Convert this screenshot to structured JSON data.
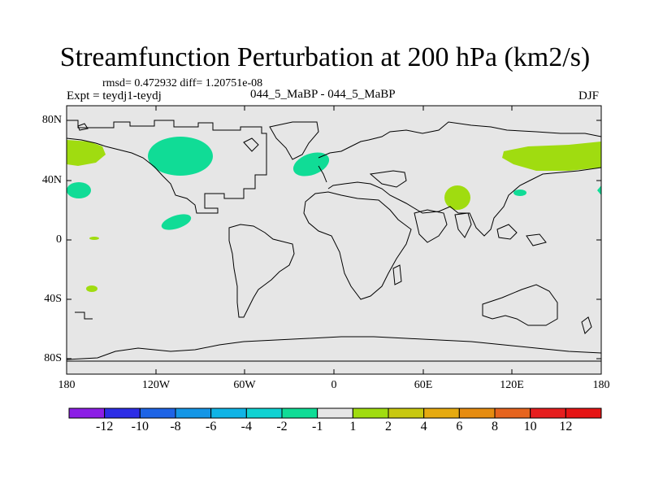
{
  "title": "Streamfunction Perturbation at 200 hPa (km2/s)",
  "stats": "rmsd= 0.472932 diff= 1.20751e-08",
  "expt": "Expt = teydj1-teydj",
  "case": "044_5_MaBP - 044_5_MaBP",
  "season": "DJF",
  "y_ticks": [
    "80N",
    "40N",
    "0",
    "40S",
    "80S"
  ],
  "x_ticks": [
    "180",
    "120W",
    "60W",
    "0",
    "60E",
    "120E",
    "180"
  ],
  "colorbar": {
    "labels": [
      "-12",
      "-10",
      "-8",
      "-6",
      "-4",
      "-2",
      "-1",
      "1",
      "2",
      "4",
      "6",
      "8",
      "10",
      "12"
    ],
    "colors": [
      "#8c1ee6",
      "#2d2de6",
      "#1e64e6",
      "#1496e6",
      "#10b4e6",
      "#10d2d2",
      "#10dc96",
      "#e6e6e6",
      "#a0dc10",
      "#c8c810",
      "#e6aa10",
      "#e68c10",
      "#e6641e",
      "#e61e1e",
      "#e61414"
    ]
  },
  "colors": {
    "background": "#e6e6e6",
    "positive": "#a0dc10",
    "negative": "#10dc96",
    "coast": "#000000"
  }
}
